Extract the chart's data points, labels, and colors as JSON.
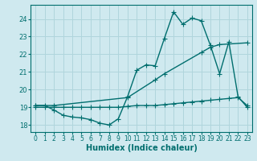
{
  "xlabel": "Humidex (Indice chaleur)",
  "bg_color": "#cfe9ef",
  "grid_color": "#b0d5dc",
  "line_color": "#006e6e",
  "xlim": [
    -0.5,
    23.5
  ],
  "ylim": [
    17.6,
    24.8
  ],
  "yticks": [
    18,
    19,
    20,
    21,
    22,
    23,
    24
  ],
  "xticks": [
    0,
    1,
    2,
    3,
    4,
    5,
    6,
    7,
    8,
    9,
    10,
    11,
    12,
    13,
    14,
    15,
    16,
    17,
    18,
    19,
    20,
    21,
    22,
    23
  ],
  "line1_x": [
    0,
    1,
    2,
    3,
    4,
    5,
    6,
    7,
    8,
    9,
    10,
    11,
    12,
    13,
    14,
    15,
    16,
    17,
    18,
    19,
    20,
    21,
    22,
    23
  ],
  "line1_y": [
    19.1,
    19.1,
    18.85,
    18.55,
    18.45,
    18.4,
    18.3,
    18.1,
    18.0,
    18.35,
    19.6,
    21.1,
    21.4,
    21.35,
    22.9,
    24.4,
    23.7,
    24.05,
    23.9,
    22.5,
    20.9,
    22.7,
    19.6,
    19.0
  ],
  "line2_x": [
    0,
    2,
    10,
    13,
    14,
    18,
    19,
    20,
    23
  ],
  "line2_y": [
    19.1,
    19.1,
    19.55,
    20.55,
    20.9,
    22.1,
    22.4,
    22.55,
    22.65
  ],
  "line3_x": [
    0,
    1,
    2,
    3,
    4,
    5,
    6,
    7,
    8,
    9,
    10,
    11,
    12,
    13,
    14,
    15,
    16,
    17,
    18,
    19,
    20,
    21,
    22,
    23
  ],
  "line3_y": [
    19.0,
    19.0,
    19.0,
    19.0,
    19.0,
    19.0,
    19.0,
    19.0,
    19.0,
    19.0,
    19.05,
    19.1,
    19.1,
    19.1,
    19.15,
    19.2,
    19.25,
    19.3,
    19.35,
    19.4,
    19.45,
    19.5,
    19.55,
    19.1
  ],
  "marker": "+",
  "markersize": 4,
  "linewidth": 1.0
}
